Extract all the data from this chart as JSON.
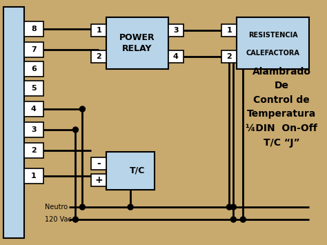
{
  "bg_color": "#c8a96e",
  "bg_outer": "#d4b483",
  "panel_color": "#b8d4e8",
  "panel_border": "#000000",
  "line_color": "#000000",
  "text_color": "#000000",
  "title_text": "Alambrado\nDe\nControl de\nTemperatura\n¼DIN  On-Off\nT/C “J”",
  "terminal_labels": [
    "1",
    "2",
    "3",
    "4",
    "5",
    "6",
    "7",
    "8"
  ],
  "relay_label": "POWER\nRELAY",
  "tc_label": "T/C",
  "res_label1": "RESISTENCIA",
  "res_label2": "CALEFACTORA",
  "neutro_label": "Neutro",
  "vac_label": "120 Vac"
}
